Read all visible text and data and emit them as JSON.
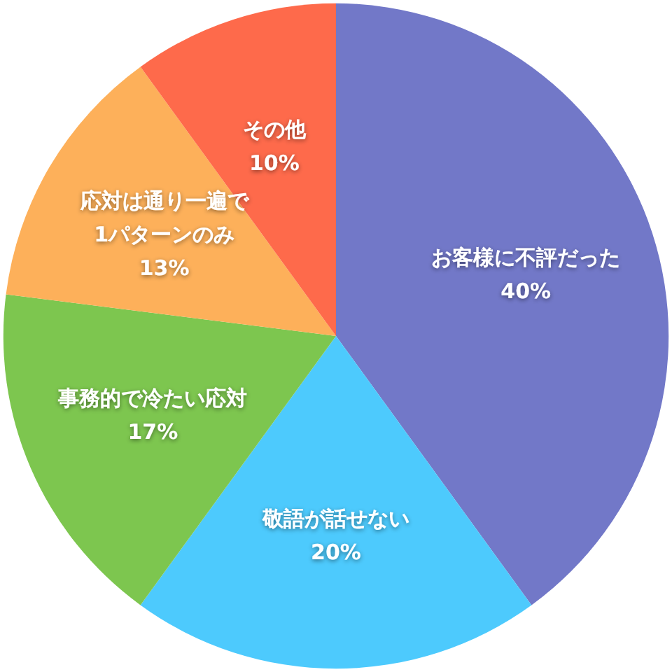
{
  "chart_data": {
    "type": "pie",
    "categories": [
      "お客様に不評だった",
      "敬語が話せない",
      "事務的で冷たい応対",
      "応対は通り一遍で\n1パターンのみ",
      "その他"
    ],
    "values": [
      40,
      20,
      17,
      13,
      10
    ],
    "colors": [
      "#7278c8",
      "#4dcafd",
      "#7dc64f",
      "#fdb05a",
      "#fe6a4b"
    ],
    "value_labels": [
      "40%",
      "20%",
      "17%",
      "13%",
      "10%"
    ]
  }
}
